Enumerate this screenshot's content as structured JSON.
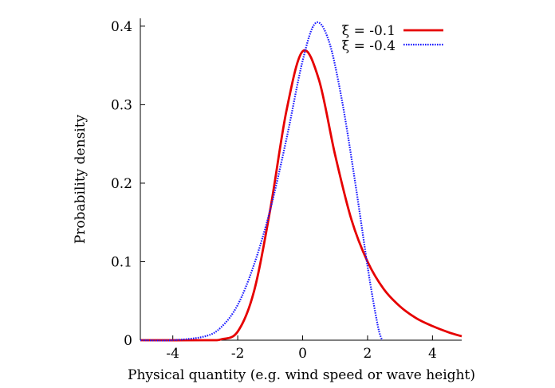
{
  "chart_data": {
    "type": "line",
    "title": "",
    "xlabel": "Physical quantity (e.g. wind speed or wave height)",
    "ylabel": "Probability density",
    "xlim": [
      -5,
      4.9
    ],
    "ylim": [
      0,
      0.41
    ],
    "xticks": [
      -4,
      -2,
      0,
      2,
      4
    ],
    "xtick_labels": [
      "-4",
      "-2",
      "0",
      "2",
      "4"
    ],
    "yticks": [
      0,
      0.1,
      0.2,
      0.3,
      0.4
    ],
    "ytick_labels": [
      "0",
      "0.1",
      "0.2",
      "0.3",
      "0.4"
    ],
    "grid": false,
    "legend_position": "top-right",
    "series": [
      {
        "name": "ξ = -0.1",
        "color": "#e60000",
        "style": "solid",
        "x": [
          -5.0,
          -3.0,
          -2.5,
          -2.0,
          -1.5,
          -1.0,
          -0.5,
          0.0,
          0.5,
          1.0,
          1.5,
          2.0,
          2.5,
          3.0,
          3.5,
          4.0,
          4.5,
          4.9
        ],
        "y": [
          0.0,
          0.0,
          0.0012,
          0.011,
          0.062,
          0.166,
          0.292,
          0.368,
          0.332,
          0.236,
          0.154,
          0.1,
          0.065,
          0.043,
          0.028,
          0.018,
          0.01,
          0.005
        ]
      },
      {
        "name": "ξ = -0.4",
        "color": "#1a1aff",
        "style": "dotted",
        "x": [
          -5.0,
          -4.0,
          -3.0,
          -2.5,
          -2.0,
          -1.5,
          -1.0,
          -0.5,
          0.0,
          0.4,
          0.8,
          1.2,
          1.6,
          2.0,
          2.2,
          2.35,
          2.45
        ],
        "y": [
          0.0,
          0.0,
          0.005,
          0.017,
          0.045,
          0.096,
          0.166,
          0.256,
          0.356,
          0.404,
          0.382,
          0.308,
          0.206,
          0.094,
          0.044,
          0.012,
          0.0
        ]
      }
    ]
  }
}
